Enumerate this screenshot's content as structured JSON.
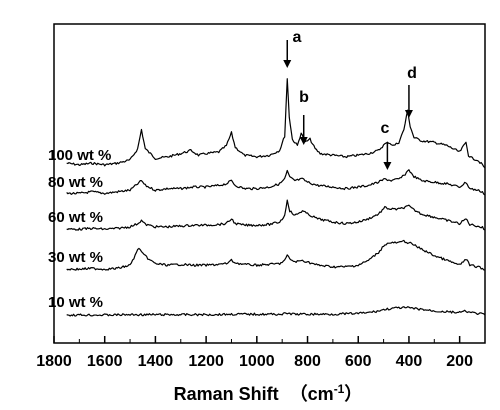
{
  "chart_data": {
    "type": "line",
    "xlabel": "Raman Shift",
    "xlabel_unit_open": "（",
    "xlabel_unit": "cm",
    "xlabel_unit_sup": "-1",
    "xlabel_unit_close": "）",
    "ylabel": "",
    "xlim": [
      1800,
      100
    ],
    "x_reversed": true,
    "xticks": [
      1800,
      1600,
      1400,
      1200,
      1000,
      800,
      600,
      400,
      200
    ],
    "y_ticks_shown": false,
    "grid": false,
    "series": [
      {
        "name": "100 wt %",
        "offset": 4,
        "points": [
          [
            1750,
            0.3
          ],
          [
            1700,
            0.2
          ],
          [
            1650,
            0.3
          ],
          [
            1600,
            0.2
          ],
          [
            1550,
            0.3
          ],
          [
            1500,
            0.5
          ],
          [
            1470,
            1.2
          ],
          [
            1455,
            2.4
          ],
          [
            1440,
            1.2
          ],
          [
            1400,
            0.6
          ],
          [
            1350,
            0.7
          ],
          [
            1300,
            0.9
          ],
          [
            1260,
            1.1
          ],
          [
            1230,
            0.8
          ],
          [
            1200,
            0.9
          ],
          [
            1150,
            1.0
          ],
          [
            1120,
            1.4
          ],
          [
            1100,
            2.2
          ],
          [
            1085,
            1.3
          ],
          [
            1050,
            0.8
          ],
          [
            1000,
            0.7
          ],
          [
            950,
            0.8
          ],
          [
            910,
            1.1
          ],
          [
            890,
            2.0
          ],
          [
            880,
            5.6
          ],
          [
            872,
            3.2
          ],
          [
            860,
            1.8
          ],
          [
            840,
            1.4
          ],
          [
            825,
            2.2
          ],
          [
            810,
            1.6
          ],
          [
            790,
            1.8
          ],
          [
            770,
            1.2
          ],
          [
            750,
            0.9
          ],
          [
            700,
            0.8
          ],
          [
            650,
            0.7
          ],
          [
            600,
            0.8
          ],
          [
            560,
            0.9
          ],
          [
            520,
            1.1
          ],
          [
            495,
            1.5
          ],
          [
            480,
            1.6
          ],
          [
            460,
            1.4
          ],
          [
            440,
            1.6
          ],
          [
            420,
            2.4
          ],
          [
            405,
            3.6
          ],
          [
            395,
            2.6
          ],
          [
            380,
            1.9
          ],
          [
            350,
            1.7
          ],
          [
            300,
            1.6
          ],
          [
            250,
            1.4
          ],
          [
            200,
            1.0
          ],
          [
            175,
            1.6
          ],
          [
            165,
            0.8
          ],
          [
            150,
            0.6
          ],
          [
            130,
            0.5
          ],
          [
            110,
            0.2
          ],
          [
            100,
            0.0
          ]
        ]
      },
      {
        "name": "80 wt %",
        "offset": 3,
        "points": [
          [
            1750,
            0.1
          ],
          [
            1700,
            0.1
          ],
          [
            1650,
            0.2
          ],
          [
            1600,
            0.1
          ],
          [
            1550,
            0.2
          ],
          [
            1500,
            0.3
          ],
          [
            1470,
            0.7
          ],
          [
            1455,
            0.9
          ],
          [
            1440,
            0.6
          ],
          [
            1400,
            0.3
          ],
          [
            1350,
            0.4
          ],
          [
            1300,
            0.4
          ],
          [
            1250,
            0.5
          ],
          [
            1200,
            0.5
          ],
          [
            1150,
            0.6
          ],
          [
            1120,
            0.7
          ],
          [
            1100,
            0.9
          ],
          [
            1085,
            0.6
          ],
          [
            1050,
            0.4
          ],
          [
            1000,
            0.4
          ],
          [
            950,
            0.5
          ],
          [
            910,
            0.7
          ],
          [
            890,
            1.0
          ],
          [
            880,
            1.5
          ],
          [
            870,
            1.1
          ],
          [
            850,
            0.9
          ],
          [
            820,
            1.0
          ],
          [
            800,
            0.8
          ],
          [
            760,
            0.6
          ],
          [
            700,
            0.5
          ],
          [
            650,
            0.4
          ],
          [
            600,
            0.5
          ],
          [
            560,
            0.6
          ],
          [
            520,
            0.8
          ],
          [
            495,
            1.0
          ],
          [
            470,
            0.9
          ],
          [
            440,
            1.0
          ],
          [
            420,
            1.2
          ],
          [
            400,
            1.6
          ],
          [
            385,
            1.2
          ],
          [
            350,
            0.9
          ],
          [
            300,
            0.8
          ],
          [
            250,
            0.7
          ],
          [
            200,
            0.5
          ],
          [
            175,
            0.8
          ],
          [
            160,
            0.4
          ],
          [
            130,
            0.3
          ],
          [
            110,
            0.2
          ],
          [
            100,
            0.0
          ]
        ]
      },
      {
        "name": "60 wt %",
        "offset": 2,
        "points": [
          [
            1750,
            0.05
          ],
          [
            1700,
            0.05
          ],
          [
            1650,
            0.1
          ],
          [
            1600,
            0.05
          ],
          [
            1550,
            0.1
          ],
          [
            1500,
            0.2
          ],
          [
            1470,
            0.4
          ],
          [
            1455,
            0.6
          ],
          [
            1440,
            0.35
          ],
          [
            1400,
            0.2
          ],
          [
            1350,
            0.2
          ],
          [
            1300,
            0.25
          ],
          [
            1250,
            0.3
          ],
          [
            1200,
            0.3
          ],
          [
            1150,
            0.35
          ],
          [
            1120,
            0.4
          ],
          [
            1100,
            0.7
          ],
          [
            1085,
            0.4
          ],
          [
            1050,
            0.3
          ],
          [
            1000,
            0.3
          ],
          [
            950,
            0.35
          ],
          [
            910,
            0.5
          ],
          [
            890,
            0.9
          ],
          [
            880,
            1.9
          ],
          [
            870,
            1.2
          ],
          [
            850,
            0.9
          ],
          [
            820,
            1.2
          ],
          [
            800,
            1.0
          ],
          [
            760,
            0.7
          ],
          [
            700,
            0.5
          ],
          [
            650,
            0.4
          ],
          [
            600,
            0.5
          ],
          [
            560,
            0.7
          ],
          [
            520,
            1.0
          ],
          [
            495,
            1.4
          ],
          [
            470,
            1.3
          ],
          [
            440,
            1.3
          ],
          [
            420,
            1.4
          ],
          [
            400,
            1.5
          ],
          [
            385,
            1.3
          ],
          [
            350,
            1.0
          ],
          [
            300,
            0.8
          ],
          [
            250,
            0.6
          ],
          [
            200,
            0.4
          ],
          [
            175,
            0.7
          ],
          [
            160,
            0.35
          ],
          [
            130,
            0.25
          ],
          [
            110,
            0.15
          ],
          [
            100,
            0.0
          ]
        ]
      },
      {
        "name": "30 wt %",
        "offset": 1,
        "points": [
          [
            1750,
            0.05
          ],
          [
            1700,
            0.05
          ],
          [
            1650,
            0.1
          ],
          [
            1600,
            0.05
          ],
          [
            1550,
            0.1
          ],
          [
            1500,
            0.3
          ],
          [
            1480,
            0.9
          ],
          [
            1465,
            1.4
          ],
          [
            1450,
            1.0
          ],
          [
            1420,
            0.6
          ],
          [
            1400,
            0.4
          ],
          [
            1350,
            0.3
          ],
          [
            1300,
            0.35
          ],
          [
            1250,
            0.3
          ],
          [
            1200,
            0.3
          ],
          [
            1150,
            0.35
          ],
          [
            1120,
            0.4
          ],
          [
            1100,
            0.6
          ],
          [
            1085,
            0.45
          ],
          [
            1050,
            0.35
          ],
          [
            1000,
            0.3
          ],
          [
            950,
            0.35
          ],
          [
            910,
            0.4
          ],
          [
            890,
            0.6
          ],
          [
            880,
            0.9
          ],
          [
            870,
            0.7
          ],
          [
            850,
            0.5
          ],
          [
            820,
            0.6
          ],
          [
            800,
            0.5
          ],
          [
            760,
            0.3
          ],
          [
            700,
            0.2
          ],
          [
            650,
            0.2
          ],
          [
            600,
            0.3
          ],
          [
            560,
            0.6
          ],
          [
            520,
            1.1
          ],
          [
            495,
            1.6
          ],
          [
            470,
            1.7
          ],
          [
            440,
            1.7
          ],
          [
            420,
            1.8
          ],
          [
            400,
            1.7
          ],
          [
            385,
            1.6
          ],
          [
            350,
            1.3
          ],
          [
            300,
            0.9
          ],
          [
            250,
            0.6
          ],
          [
            200,
            0.3
          ],
          [
            175,
            0.7
          ],
          [
            160,
            0.3
          ],
          [
            130,
            0.2
          ],
          [
            110,
            0.1
          ],
          [
            100,
            0.0
          ]
        ]
      },
      {
        "name": "10 wt %",
        "offset": 0,
        "points": [
          [
            1750,
            0.0
          ],
          [
            1700,
            0.0
          ],
          [
            1600,
            0.0
          ],
          [
            1500,
            0.02
          ],
          [
            1400,
            0.02
          ],
          [
            1300,
            0.02
          ],
          [
            1200,
            0.02
          ],
          [
            1100,
            0.05
          ],
          [
            1000,
            0.05
          ],
          [
            900,
            0.05
          ],
          [
            880,
            0.1
          ],
          [
            850,
            0.05
          ],
          [
            800,
            0.05
          ],
          [
            700,
            0.05
          ],
          [
            600,
            0.1
          ],
          [
            560,
            0.15
          ],
          [
            520,
            0.25
          ],
          [
            495,
            0.35
          ],
          [
            470,
            0.4
          ],
          [
            440,
            0.45
          ],
          [
            420,
            0.45
          ],
          [
            400,
            0.45
          ],
          [
            380,
            0.4
          ],
          [
            350,
            0.35
          ],
          [
            300,
            0.25
          ],
          [
            250,
            0.2
          ],
          [
            200,
            0.15
          ],
          [
            175,
            0.25
          ],
          [
            160,
            0.15
          ],
          [
            130,
            0.1
          ],
          [
            110,
            0.05
          ],
          [
            100,
            0.0
          ]
        ]
      }
    ],
    "annotations": [
      {
        "label": "a",
        "x": 880,
        "arrow": true
      },
      {
        "label": "b",
        "x": 815,
        "arrow": true
      },
      {
        "label": "c",
        "x": 485,
        "arrow": true
      },
      {
        "label": "d",
        "x": 400,
        "arrow": true
      }
    ]
  }
}
